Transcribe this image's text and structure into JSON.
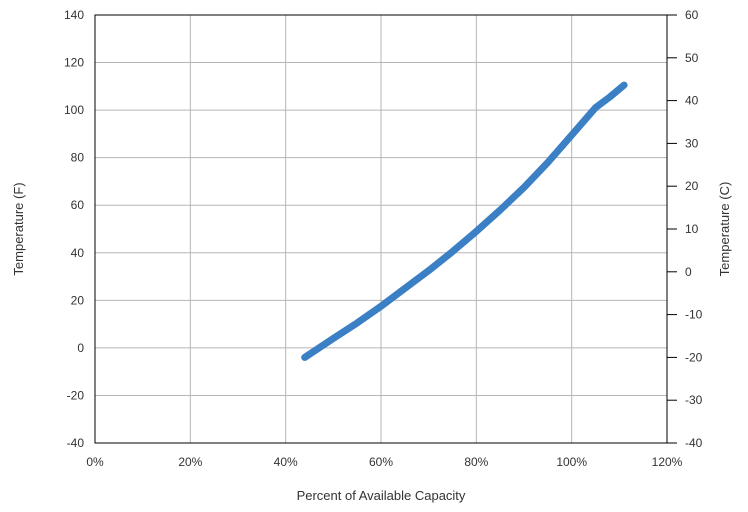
{
  "chart_data": {
    "type": "line",
    "title": "",
    "xlabel": "Percent of Available Capacity",
    "ylabel": "Temperature (F)",
    "y2label": "Temperature (C)",
    "xlim": [
      0,
      120
    ],
    "ylim": [
      -40,
      140
    ],
    "y2lim": [
      -40,
      60
    ],
    "x_ticks": [
      "0%",
      "20%",
      "40%",
      "60%",
      "80%",
      "100%",
      "120%"
    ],
    "y_ticks": [
      "-40",
      "-20",
      "0",
      "20",
      "40",
      "60",
      "80",
      "100",
      "120",
      "140"
    ],
    "y2_ticks": [
      "-40",
      "-30",
      "-20",
      "-10",
      "0",
      "10",
      "20",
      "30",
      "40",
      "50",
      "60"
    ],
    "grid": true,
    "legend": "none",
    "series": [
      {
        "color": "#3b7fc4",
        "x": [
          44,
          50,
          55,
          60,
          65,
          70,
          75,
          80,
          85,
          90,
          95,
          100,
          105,
          108,
          111
        ],
        "y": [
          -4,
          4,
          10.5,
          17.5,
          25,
          32.5,
          40.5,
          49,
          58,
          67.5,
          78,
          89.5,
          101,
          105.5,
          110.5
        ]
      }
    ]
  }
}
